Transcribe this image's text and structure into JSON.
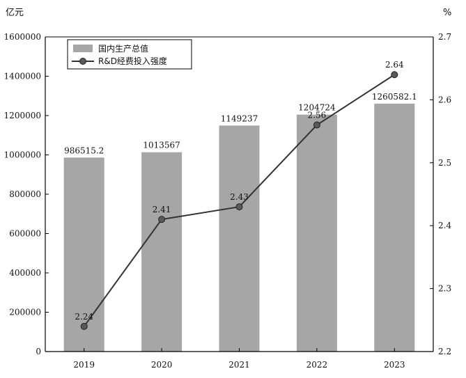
{
  "chart_data": {
    "type": "bar",
    "categories": [
      "2019",
      "2020",
      "2021",
      "2022",
      "2023"
    ],
    "series": [
      {
        "name": "国内生产总值",
        "kind": "bar",
        "axis": "left",
        "values": [
          986515.2,
          1013567,
          1149237,
          1204724,
          1260582.1
        ],
        "labels": [
          "986515.2",
          "1013567",
          "1149237",
          "1204724",
          "1260582.1"
        ]
      },
      {
        "name": "R&D经费投入强度",
        "kind": "line",
        "axis": "right",
        "values": [
          2.24,
          2.41,
          2.43,
          2.56,
          2.64
        ],
        "labels": [
          "2.24",
          "2.41",
          "2.43",
          "2.56",
          "2.64"
        ]
      }
    ],
    "left_axis": {
      "unit": "亿元",
      "ylim": [
        0,
        1600000
      ],
      "ticks": [
        "0",
        "200000",
        "400000",
        "600000",
        "800000",
        "1000000",
        "1200000",
        "1400000",
        "1600000"
      ]
    },
    "right_axis": {
      "unit": "%",
      "ylim": [
        2.2,
        2.7
      ],
      "ticks": [
        "2.2",
        "2.3",
        "2.4",
        "2.5",
        "2.6",
        "2.7"
      ]
    },
    "legend_position": "top-left",
    "grid": false,
    "colors": {
      "bar": "#a6a6a6",
      "line": "#333333",
      "marker": "#595959"
    }
  }
}
